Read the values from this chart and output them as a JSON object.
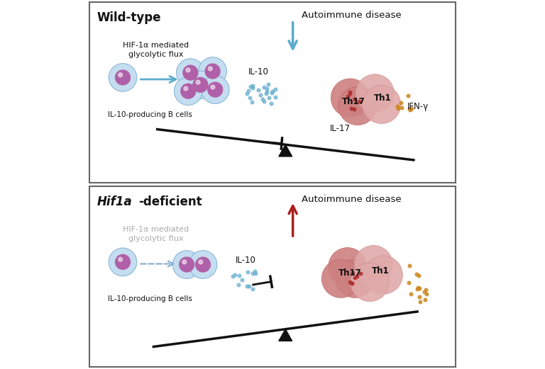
{
  "panel_bg": "#ffffff",
  "border_color": "#666666",
  "cell_outer_color": "#c5ddf0",
  "cell_inner_color": "#b060a8",
  "b_cell_cluster_outer": "#c5ddf0",
  "b_cell_inner_dark": "#9040a0",
  "th17_color": "#cd8080",
  "th1_color": "#e0aaaa",
  "th17_dark": "#c06060",
  "th1_dark": "#d09090",
  "arrow_blue": "#5aabcc",
  "arrow_red": "#aa2020",
  "dot_blue": "#6ab0d0",
  "dot_orange": "#cc8822",
  "dot_red": "#b03030",
  "triangle_color": "#111111",
  "beam_color": "#111111",
  "text_dark": "#111111",
  "text_gray": "#aaaaaa",
  "panel1_title": "Wild-type",
  "label_bcells": "IL-10-producing B cells",
  "label_glycolytic": "HIF-1α mediated\nglycolytic flux",
  "label_glycolytic_gray": "HIF-1α mediated\nglycolytic flux",
  "label_il10": "IL-10",
  "label_il17": "IL-17",
  "label_ifny": "IFN-γ",
  "label_th17": "Th17",
  "label_th1": "Th1",
  "label_autoimmune": "Autoimmune disease"
}
